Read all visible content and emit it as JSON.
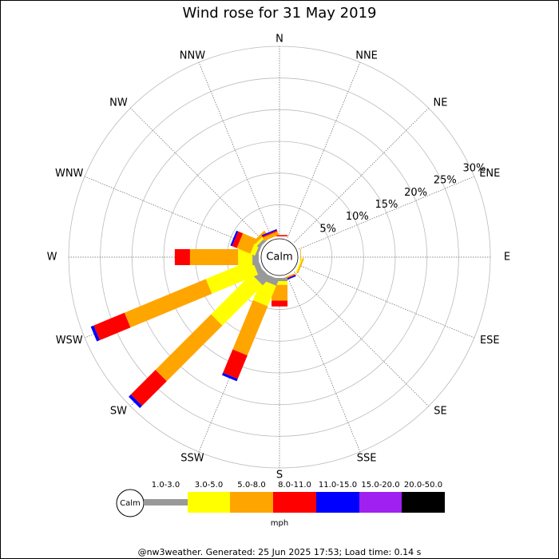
{
  "chart_data": {
    "type": "windrose",
    "title": "Wind rose for 31 May 2019",
    "directions": [
      "N",
      "NNE",
      "NE",
      "ENE",
      "E",
      "ESE",
      "SE",
      "SSE",
      "S",
      "SSW",
      "SW",
      "WSW",
      "W",
      "WNW",
      "NW",
      "NNW"
    ],
    "series": [
      {
        "name": "1.0-3.0",
        "color": "#999999",
        "values": [
          0,
          0,
          0,
          0,
          0,
          0,
          0,
          0,
          0.5,
          1.1,
          1.75,
          0.9,
          1,
          0.4,
          0.5,
          0
        ]
      },
      {
        "name": "3.0-5.0",
        "color": "#ffff00",
        "values": [
          0,
          0,
          0,
          0,
          0,
          0.2,
          0,
          0,
          0.6,
          3.5,
          9,
          7.9,
          2.25,
          0.8,
          0.4,
          0
        ]
      },
      {
        "name": "5.0-8.0",
        "color": "#ffa500",
        "values": [
          0,
          0,
          0,
          0,
          0.1,
          0.2,
          0,
          0.2,
          2.5,
          8.4,
          12.4,
          13.9,
          7.6,
          2.3,
          0.5,
          0.6
        ]
      },
      {
        "name": "8.0-11.0",
        "color": "#ff0000",
        "values": [
          0.2,
          0,
          0,
          0,
          0,
          0,
          0,
          0.1,
          0.9,
          4,
          5.5,
          5.25,
          2.4,
          0.8,
          0,
          0.2
        ]
      },
      {
        "name": "11.0-15.0",
        "color": "#0000ff",
        "values": [
          0,
          0,
          0,
          0,
          0,
          0,
          0,
          0.2,
          0,
          0.4,
          0.5,
          0.5,
          0,
          0.3,
          0,
          0.2
        ]
      },
      {
        "name": "15.0-20.0",
        "color": "#a020f0",
        "values": [
          0,
          0,
          0,
          0,
          0,
          0,
          0,
          0,
          0,
          0,
          0,
          0,
          0,
          0,
          0,
          0
        ]
      },
      {
        "name": "20.0-50.0",
        "color": "#000000",
        "values": [
          0,
          0,
          0,
          0,
          0,
          0,
          0,
          0,
          0,
          0,
          0,
          0,
          0,
          0,
          0,
          0
        ]
      }
    ],
    "rlim": [
      0,
      30
    ],
    "rticks": [
      {
        "value": 5,
        "label": "5%"
      },
      {
        "value": 10,
        "label": "10%"
      },
      {
        "value": 15,
        "label": "15%"
      },
      {
        "value": 20,
        "label": "20%"
      },
      {
        "value": 25,
        "label": "25%"
      },
      {
        "value": 30,
        "label": "30%"
      }
    ],
    "calm_label": "Calm",
    "unit": "mph",
    "footer": "@nw3weather. Generated: 25 Jun 2025 17:53; Load time: 0.14 s"
  }
}
